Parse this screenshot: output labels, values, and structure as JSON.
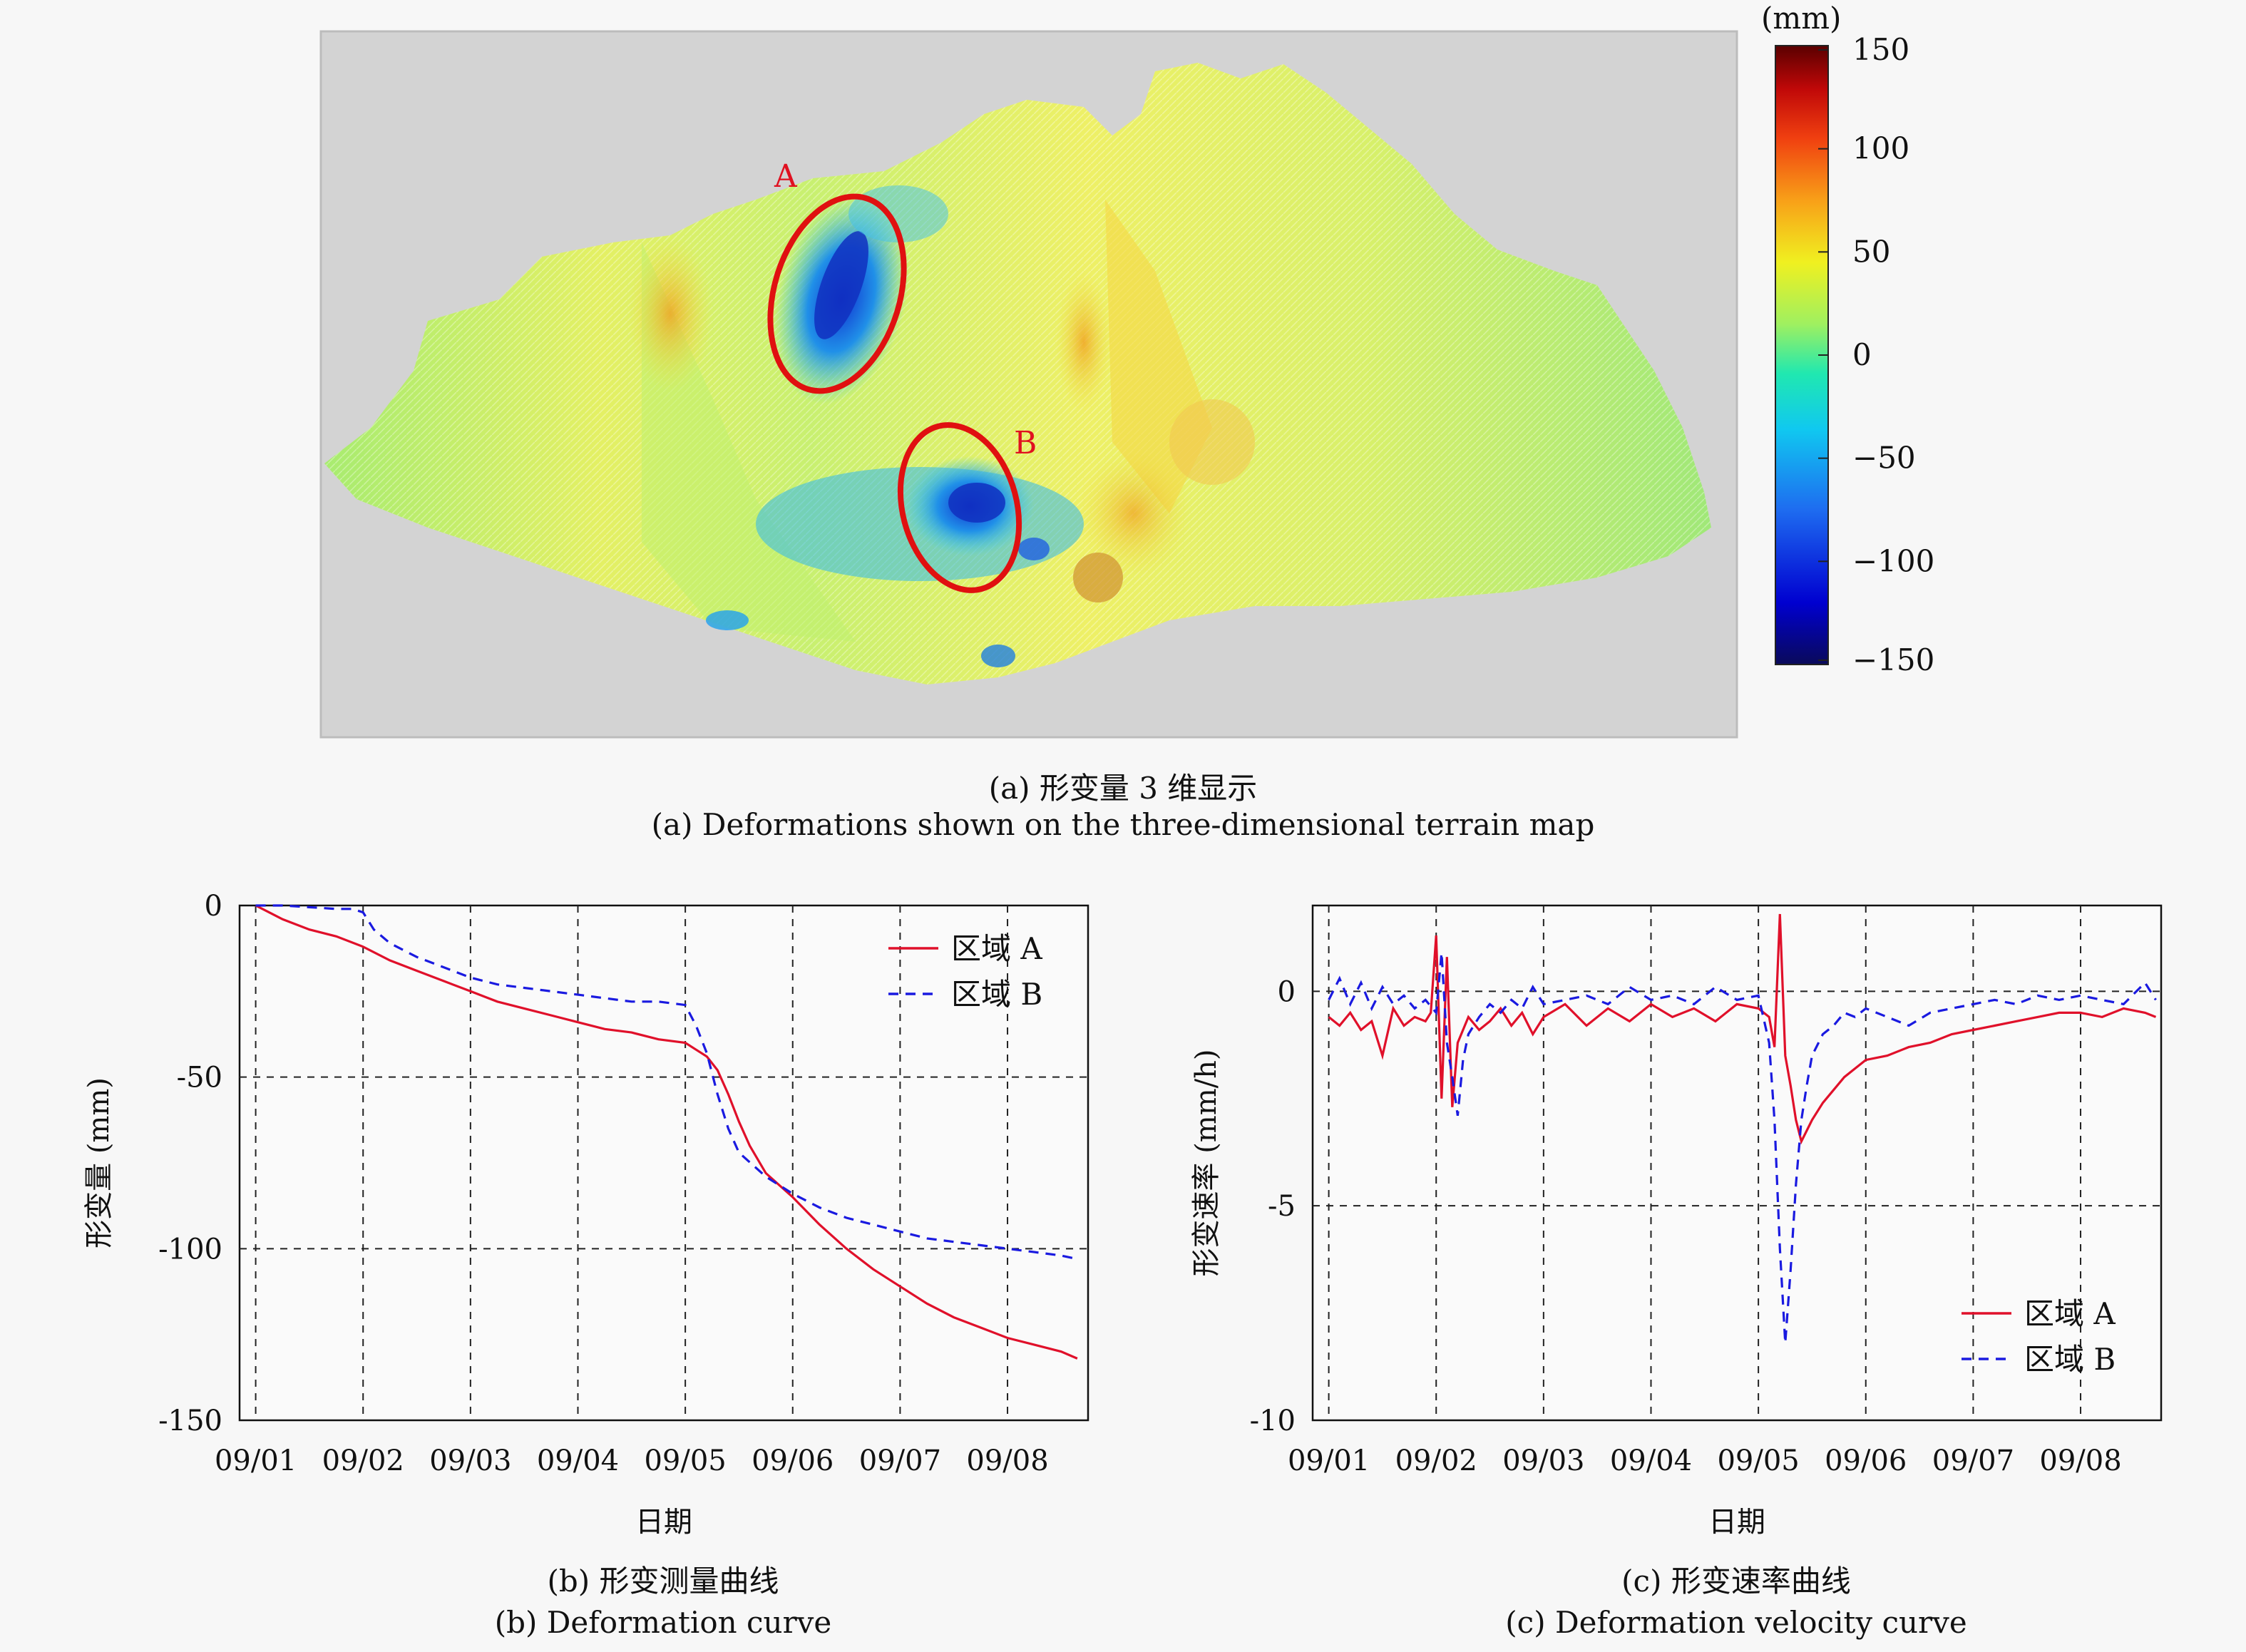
{
  "panel_a": {
    "marker_a": "A",
    "marker_b": "B",
    "colorbar": {
      "unit": "(mm)",
      "ticks": [
        "150",
        "100",
        "50",
        "0",
        "−50",
        "−100",
        "−150"
      ],
      "range": [
        -150,
        150
      ],
      "colors": [
        "#0a0a5a",
        "#0000d0",
        "#1e6cf0",
        "#10c8f0",
        "#20e8b0",
        "#9ff060",
        "#f0f020",
        "#f8a018",
        "#f04010",
        "#c00808",
        "#5a0000"
      ]
    },
    "caption_cn": "(a) 形变量 3 维显示",
    "caption_en": "(a) Deformations shown on the three-dimensional terrain map"
  },
  "chart_data": [
    {
      "type": "line",
      "caption_cn": "(b) 形变测量曲线",
      "caption_en": "(b) Deformation curve",
      "xlabel": "日期",
      "ylabel": "形变量 (mm)",
      "xticks": [
        "09/01",
        "09/02",
        "09/03",
        "09/04",
        "09/05",
        "09/06",
        "09/07",
        "09/08"
      ],
      "xlim": [
        -0.15,
        7.75
      ],
      "ylim": [
        -150,
        0
      ],
      "yticks": [
        0,
        -50,
        -100,
        -150
      ],
      "ytick_labels": [
        "0",
        "-50",
        "-100",
        "-150"
      ],
      "grid": true,
      "legend_position": "top-right",
      "series": [
        {
          "name": "区域 A",
          "color": "#e0102a",
          "dash": "",
          "x": [
            0,
            0.25,
            0.5,
            0.75,
            1,
            1.25,
            1.5,
            1.75,
            2,
            2.25,
            2.5,
            2.75,
            3,
            3.25,
            3.5,
            3.75,
            4,
            4.1,
            4.2,
            4.3,
            4.4,
            4.5,
            4.6,
            4.75,
            5,
            5.25,
            5.5,
            5.75,
            6,
            6.25,
            6.5,
            6.75,
            7,
            7.25,
            7.5,
            7.65
          ],
          "y": [
            0,
            -4,
            -7,
            -9,
            -12,
            -16,
            -19,
            -22,
            -25,
            -28,
            -30,
            -32,
            -34,
            -36,
            -37,
            -39,
            -40,
            -42,
            -44,
            -48,
            -55,
            -63,
            -70,
            -78,
            -85,
            -93,
            -100,
            -106,
            -111,
            -116,
            -120,
            -123,
            -126,
            -128,
            -130,
            -132
          ]
        },
        {
          "name": "区域 B",
          "color": "#1a1ae0",
          "dash": "14,10",
          "x": [
            0,
            0.25,
            0.5,
            0.75,
            0.9,
            1,
            1.1,
            1.25,
            1.5,
            1.75,
            2,
            2.25,
            2.5,
            2.75,
            3,
            3.25,
            3.5,
            3.75,
            4,
            4.1,
            4.2,
            4.3,
            4.4,
            4.5,
            4.75,
            5,
            5.25,
            5.5,
            5.75,
            6,
            6.25,
            6.5,
            6.75,
            7,
            7.25,
            7.5,
            7.65
          ],
          "y": [
            0,
            0,
            -0.5,
            -1,
            -1,
            -2,
            -7,
            -11,
            -15,
            -18,
            -21,
            -23,
            -24,
            -25,
            -26,
            -27,
            -28,
            -28,
            -29,
            -35,
            -43,
            -55,
            -65,
            -72,
            -79,
            -84,
            -88,
            -91,
            -93,
            -95,
            -97,
            -98,
            -99,
            -100,
            -101,
            -102,
            -103
          ]
        }
      ]
    },
    {
      "type": "line",
      "caption_cn": "(c) 形变速率曲线",
      "caption_en": "(c) Deformation velocity curve",
      "xlabel": "日期",
      "ylabel": "形变速率 (mm/h)",
      "xticks": [
        "09/01",
        "09/02",
        "09/03",
        "09/04",
        "09/05",
        "09/06",
        "09/07",
        "09/08"
      ],
      "xlim": [
        -0.15,
        7.75
      ],
      "ylim": [
        -10,
        2
      ],
      "yticks": [
        0,
        -5,
        -10
      ],
      "ytick_labels": [
        "0",
        "-5",
        "-10"
      ],
      "grid": true,
      "legend_position": "bottom-right",
      "series": [
        {
          "name": "区域 A",
          "color": "#e0102a",
          "dash": "",
          "x": [
            0,
            0.1,
            0.2,
            0.3,
            0.4,
            0.5,
            0.6,
            0.7,
            0.8,
            0.9,
            0.95,
            1.0,
            1.05,
            1.1,
            1.15,
            1.2,
            1.3,
            1.4,
            1.5,
            1.6,
            1.7,
            1.8,
            1.9,
            2.0,
            2.2,
            2.4,
            2.6,
            2.8,
            3.0,
            3.2,
            3.4,
            3.6,
            3.8,
            4.0,
            4.1,
            4.15,
            4.2,
            4.25,
            4.3,
            4.35,
            4.4,
            4.5,
            4.6,
            4.7,
            4.8,
            4.9,
            5.0,
            5.2,
            5.4,
            5.6,
            5.8,
            6.0,
            6.2,
            6.4,
            6.6,
            6.8,
            7.0,
            7.2,
            7.4,
            7.6,
            7.7
          ],
          "y": [
            -0.6,
            -0.8,
            -0.5,
            -0.9,
            -0.7,
            -1.5,
            -0.4,
            -0.8,
            -0.6,
            -0.7,
            -0.5,
            1.3,
            -2.5,
            0.8,
            -2.7,
            -1.2,
            -0.6,
            -0.9,
            -0.7,
            -0.4,
            -0.8,
            -0.5,
            -1.0,
            -0.6,
            -0.3,
            -0.8,
            -0.4,
            -0.7,
            -0.3,
            -0.6,
            -0.4,
            -0.7,
            -0.3,
            -0.4,
            -0.6,
            -1.3,
            1.8,
            -1.5,
            -2.2,
            -3.0,
            -3.5,
            -3.0,
            -2.6,
            -2.3,
            -2.0,
            -1.8,
            -1.6,
            -1.5,
            -1.3,
            -1.2,
            -1.0,
            -0.9,
            -0.8,
            -0.7,
            -0.6,
            -0.5,
            -0.5,
            -0.6,
            -0.4,
            -0.5,
            -0.6
          ]
        },
        {
          "name": "区域 B",
          "color": "#1a1ae0",
          "dash": "14,10",
          "x": [
            0,
            0.1,
            0.2,
            0.3,
            0.4,
            0.5,
            0.6,
            0.7,
            0.8,
            0.9,
            1.0,
            1.05,
            1.1,
            1.15,
            1.2,
            1.25,
            1.3,
            1.4,
            1.5,
            1.6,
            1.7,
            1.8,
            1.9,
            2.0,
            2.2,
            2.4,
            2.6,
            2.8,
            3.0,
            3.2,
            3.4,
            3.6,
            3.8,
            4.0,
            4.1,
            4.15,
            4.2,
            4.25,
            4.3,
            4.35,
            4.4,
            4.45,
            4.5,
            4.6,
            4.7,
            4.8,
            4.9,
            5.0,
            5.2,
            5.4,
            5.6,
            5.8,
            6.0,
            6.2,
            6.4,
            6.6,
            6.8,
            7.0,
            7.2,
            7.4,
            7.6,
            7.7
          ],
          "y": [
            -0.2,
            0.3,
            -0.3,
            0.2,
            -0.4,
            0.1,
            -0.3,
            -0.1,
            -0.4,
            -0.2,
            -0.5,
            0.9,
            -1.2,
            -2.0,
            -2.9,
            -1.6,
            -1.0,
            -0.6,
            -0.3,
            -0.5,
            -0.2,
            -0.4,
            0.1,
            -0.3,
            -0.2,
            -0.1,
            -0.3,
            0.1,
            -0.2,
            -0.1,
            -0.3,
            0.1,
            -0.2,
            -0.1,
            -1.2,
            -3.0,
            -6.0,
            -8.2,
            -6.5,
            -4.5,
            -3.0,
            -2.2,
            -1.5,
            -1.0,
            -0.8,
            -0.5,
            -0.6,
            -0.4,
            -0.6,
            -0.8,
            -0.5,
            -0.4,
            -0.3,
            -0.2,
            -0.3,
            -0.1,
            -0.2,
            -0.1,
            -0.2,
            -0.3,
            0.2,
            -0.2
          ]
        }
      ]
    }
  ]
}
